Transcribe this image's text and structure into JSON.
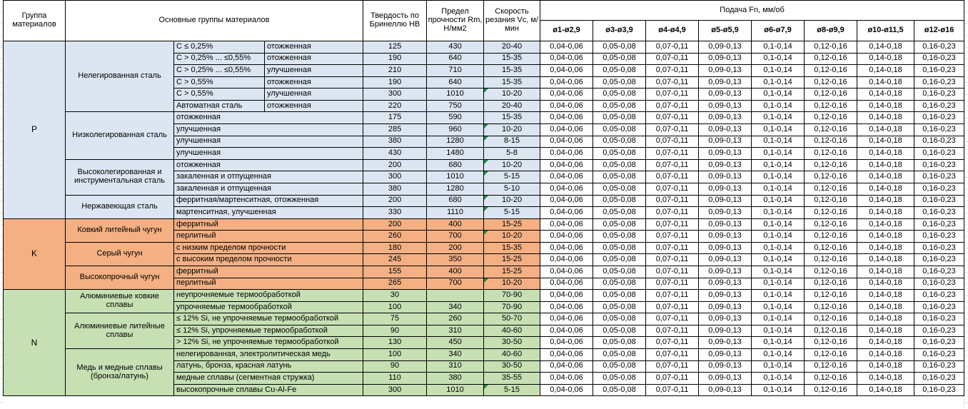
{
  "header": {
    "col_group": "Группа материалов",
    "col_main": "Основные группы материалов",
    "col_hb": "Твердость по Бринеллю HB",
    "col_rm": "Предел прочности Rm, Н/мм2",
    "col_vc": "Скорость резания Vc, м/мин",
    "feed_title": "Подача Fn, мм/об",
    "feed_cols": [
      "ø1-ø2,9",
      "ø3-ø3,9",
      "ø4-ø4,9",
      "ø5-ø5,9",
      "ø6-ø7,9",
      "ø8-ø9,9",
      "ø10-ø11,5",
      "ø12-ø16"
    ]
  },
  "feed_values": [
    "0,04-0,06",
    "0,05-0,08",
    "0,07-0,11",
    "0,09-0,13",
    "0,1-0,14",
    "0,12-0,16",
    "0,14-0,18",
    "0,16-0,23"
  ],
  "colors": {
    "steel_blue": "#dce6f2",
    "cast_iron_orange": "#f4b083",
    "nonferrous_green": "#c6e0b4",
    "error_triangle_green": "#1f8a44",
    "border": "#000000"
  },
  "groups": [
    {
      "code": "P",
      "color": "#dce6f2",
      "subgroups": [
        {
          "name": "Нелегированная сталь",
          "rows": [
            {
              "c1": "С ≤ 0,25%",
              "c2": "отожженная",
              "hb": "125",
              "rm": "430",
              "vc": "20-40",
              "flag": false
            },
            {
              "c1": "С > 0,25% ... ≤0,55%",
              "c2": "отожженная",
              "hb": "190",
              "rm": "640",
              "vc": "15-35",
              "flag": false
            },
            {
              "c1": "С > 0,25% ... ≤0,55%",
              "c2": "улучшенная",
              "hb": "210",
              "rm": "710",
              "vc": "15-35",
              "flag": false
            },
            {
              "c1": "С > 0,55%",
              "c2": "отожженная",
              "hb": "190",
              "rm": "640",
              "vc": "15-35",
              "flag": false
            },
            {
              "c1": "С > 0,55%",
              "c2": "улучшенная",
              "hb": "300",
              "rm": "1010",
              "vc": "10-20",
              "flag": true
            },
            {
              "c1": "Автоматная сталь",
              "c2": "отожженная",
              "hb": "220",
              "rm": "750",
              "vc": "20-40",
              "flag": false
            }
          ]
        },
        {
          "name": "Низколегированная сталь",
          "rows": [
            {
              "desc": "отожженная",
              "hb": "175",
              "rm": "590",
              "vc": "15-35",
              "flag": false
            },
            {
              "desc": "улучшенная",
              "hb": "285",
              "rm": "960",
              "vc": "10-20",
              "flag": true
            },
            {
              "desc": "улучшенная",
              "hb": "380",
              "rm": "1280",
              "vc": "8-15",
              "flag": true
            },
            {
              "desc": "улучшенная",
              "hb": "430",
              "rm": "1480",
              "vc": "5-8",
              "flag": false
            }
          ]
        },
        {
          "name": "Высоколегированная и инструментальная сталь",
          "rows": [
            {
              "desc": "отожженная",
              "hb": "200",
              "rm": "680",
              "vc": "10-20",
              "flag": true
            },
            {
              "desc": "закаленная и отпущенная",
              "hb": "300",
              "rm": "1010",
              "vc": "5-15",
              "flag": true
            },
            {
              "desc": "закаленная и отпущенная",
              "hb": "380",
              "rm": "1280",
              "vc": "5-10",
              "flag": false
            }
          ]
        },
        {
          "name": "Нержавеющая сталь",
          "rows": [
            {
              "desc": "ферритная/мартенситная, отожженная",
              "hb": "200",
              "rm": "680",
              "vc": "10-20",
              "flag": true
            },
            {
              "desc": "мартенситная, улучшенная",
              "hb": "330",
              "rm": "1110",
              "vc": "5-15",
              "flag": true
            }
          ]
        }
      ]
    },
    {
      "code": "K",
      "color": "#f4b083",
      "subgroups": [
        {
          "name": "Ковкий литейный чугун",
          "rows": [
            {
              "desc": "ферритный",
              "hb": "200",
              "rm": "400",
              "vc": "15-25",
              "flag": false
            },
            {
              "desc": "перлитный",
              "hb": "260",
              "rm": "700",
              "vc": "10-20",
              "flag": true
            }
          ]
        },
        {
          "name": "Серый чугун",
          "rows": [
            {
              "desc": "с низким пределом прочности",
              "hb": "180",
              "rm": "200",
              "vc": "15-35",
              "flag": false
            },
            {
              "desc": "с высоким пределом прочности",
              "hb": "245",
              "rm": "350",
              "vc": "15-25",
              "flag": false
            }
          ]
        },
        {
          "name": "Высокопрочный чугун",
          "rows": [
            {
              "desc": "ферритный",
              "hb": "155",
              "rm": "400",
              "vc": "15-25",
              "flag": false
            },
            {
              "desc": "перлитный",
              "hb": "265",
              "rm": "700",
              "vc": "10-20",
              "flag": true
            }
          ]
        }
      ]
    },
    {
      "code": "N",
      "color": "#c6e0b4",
      "subgroups": [
        {
          "name": "Алюминиевые ковкие сплавы",
          "rows": [
            {
              "desc": "неупрочняемые термообработкой",
              "hb": "30",
              "rm": "",
              "vc": "70-90",
              "flag": false
            },
            {
              "desc": "упрочняемые термообработкой",
              "hb": "100",
              "rm": "340",
              "vc": "70-90",
              "flag": false
            }
          ]
        },
        {
          "name": "Алюминиевые литейные сплавы",
          "rows": [
            {
              "desc": "≤ 12% Si, не упрочняемые термообработкой",
              "hb": "75",
              "rm": "260",
              "vc": "50-70",
              "flag": false
            },
            {
              "desc": "≤ 12% Si, упрочняемые термообработкой",
              "hb": "90",
              "rm": "310",
              "vc": "40-60",
              "flag": false
            },
            {
              "desc": "> 12% Si, не упрочняемые термообработкой",
              "hb": "130",
              "rm": "450",
              "vc": "30-50",
              "flag": false
            }
          ]
        },
        {
          "name": "Медь и медные сплавы (бронза/латунь)",
          "rows": [
            {
              "desc": "нелегированная, электролитическая медь",
              "hb": "100",
              "rm": "340",
              "vc": "40-60",
              "flag": false
            },
            {
              "desc": "латунь, бронза, красная латунь",
              "hb": "90",
              "rm": "310",
              "vc": "30-50",
              "flag": false
            },
            {
              "desc": "медные сплавы (сегментная стружка)",
              "hb": "110",
              "rm": "380",
              "vc": "35-55",
              "flag": false
            },
            {
              "desc": "высокопрочные сплавы Cu-Al-Fe",
              "hb": "300",
              "rm": "1010",
              "vc": "5-15",
              "flag": true
            }
          ]
        }
      ]
    }
  ]
}
